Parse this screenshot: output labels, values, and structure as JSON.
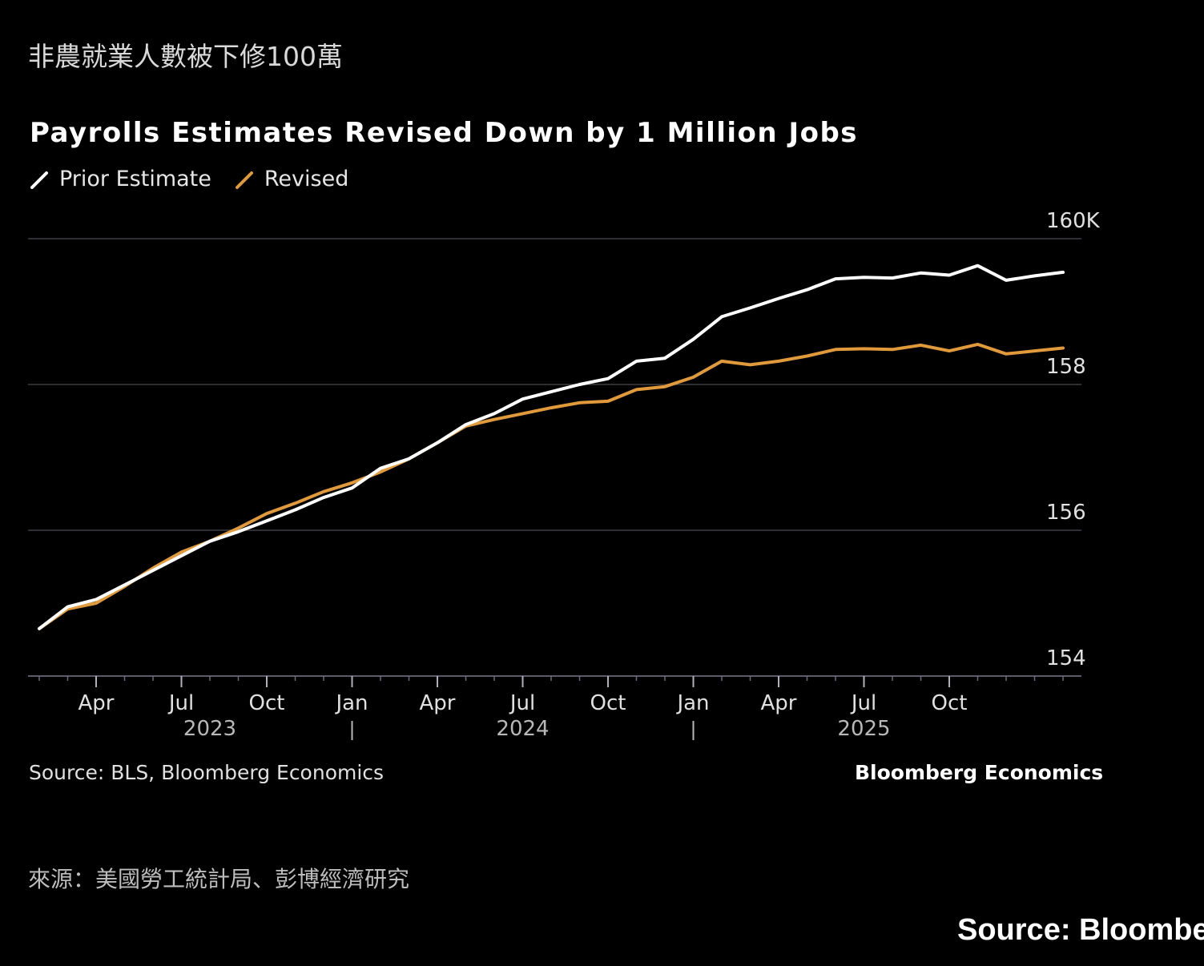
{
  "header": {
    "zh_title": "非農就業人數被下修100萬",
    "title": "Payrolls Estimates Revised Down by 1 Million Jobs"
  },
  "legend": [
    {
      "label": "Prior Estimate",
      "color": "#ffffff"
    },
    {
      "label": "Revised",
      "color": "#e09a3c"
    }
  ],
  "footer": {
    "source": "Source: BLS, Bloomberg Economics",
    "brand": "Bloomberg Economics",
    "zh_source": "來源：美國勞工統計局、彭博經濟研究",
    "corner_caption": "Source: Bloombe"
  },
  "chart_data": {
    "type": "line",
    "y_unit": "thousands of jobs",
    "ylim": [
      154,
      160
    ],
    "y_ticks": [
      {
        "value": 160,
        "label": "160K"
      },
      {
        "value": 158,
        "label": "158"
      },
      {
        "value": 156,
        "label": "156"
      },
      {
        "value": 154,
        "label": "154"
      }
    ],
    "grid": true,
    "legend_position": "top-left",
    "x": [
      "2023-02",
      "2023-03",
      "2023-04",
      "2023-05",
      "2023-06",
      "2023-07",
      "2023-08",
      "2023-09",
      "2023-10",
      "2023-11",
      "2023-12",
      "2024-01",
      "2024-02",
      "2024-03",
      "2024-04",
      "2024-05",
      "2024-06",
      "2024-07",
      "2024-08",
      "2024-09",
      "2024-10",
      "2024-11",
      "2024-12",
      "2025-01",
      "2025-02",
      "2025-03",
      "2025-04",
      "2025-05",
      "2025-06",
      "2025-07",
      "2025-08",
      "2025-09",
      "2025-10",
      "2025-11",
      "2025-12",
      "2026-01",
      "2026-02"
    ],
    "x_month_ticks": [
      {
        "month": "2023-04",
        "label": "Apr"
      },
      {
        "month": "2023-07",
        "label": "Jul"
      },
      {
        "month": "2023-10",
        "label": "Oct"
      },
      {
        "month": "2024-01",
        "label": "Jan"
      },
      {
        "month": "2024-04",
        "label": "Apr"
      },
      {
        "month": "2024-07",
        "label": "Jul"
      },
      {
        "month": "2024-10",
        "label": "Oct"
      },
      {
        "month": "2025-01",
        "label": "Jan"
      },
      {
        "month": "2025-04",
        "label": "Apr"
      },
      {
        "month": "2025-07",
        "label": "Jul"
      },
      {
        "month": "2025-10",
        "label": "Oct"
      }
    ],
    "x_year_labels": [
      {
        "month": "2023-08",
        "label": "2023"
      },
      {
        "month": "2024-07",
        "label": "2024"
      },
      {
        "month": "2025-07",
        "label": "2025"
      }
    ],
    "x_year_separators": [
      "2024-01",
      "2025-01"
    ],
    "series": [
      {
        "name": "Prior Estimate",
        "color": "#ffffff",
        "values": [
          154.65,
          154.95,
          155.05,
          155.25,
          155.45,
          155.65,
          155.85,
          155.98,
          156.13,
          156.28,
          156.45,
          156.58,
          156.85,
          156.98,
          157.2,
          157.45,
          157.6,
          157.8,
          157.9,
          158.0,
          158.08,
          158.32,
          158.36,
          158.62,
          158.93,
          159.05,
          159.18,
          159.3,
          159.45,
          159.47,
          159.46,
          159.53,
          159.5,
          159.63,
          159.43,
          159.49,
          159.54
        ]
      },
      {
        "name": "Revised",
        "color": "#e09a3c",
        "values": [
          154.65,
          154.92,
          155.0,
          155.23,
          155.48,
          155.7,
          155.85,
          156.03,
          156.23,
          156.37,
          156.53,
          156.65,
          156.8,
          156.98,
          157.2,
          157.43,
          157.52,
          157.6,
          157.68,
          157.75,
          157.77,
          157.93,
          157.97,
          158.1,
          158.32,
          158.27,
          158.32,
          158.39,
          158.48,
          158.49,
          158.48,
          158.54,
          158.46,
          158.55,
          158.42,
          158.46,
          158.5
        ]
      }
    ]
  }
}
